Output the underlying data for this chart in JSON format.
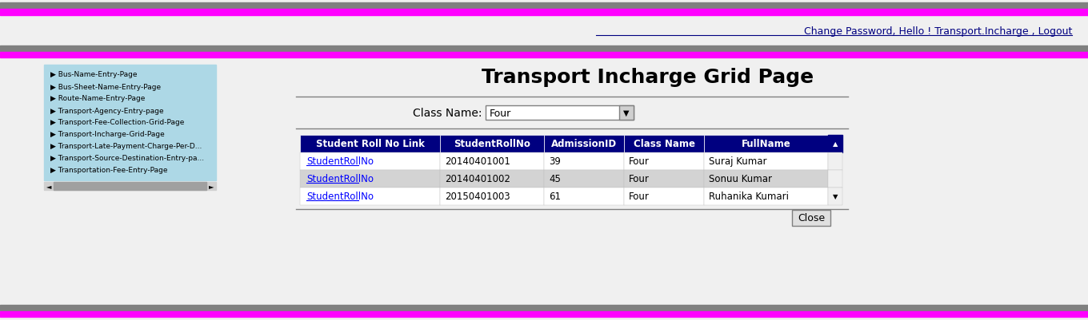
{
  "title": "Transport Incharge Grid Page",
  "bg_color": "#f0f0f0",
  "top_bar_gray": "#808080",
  "top_bar_magenta": "#ff00ff",
  "header_link_text": "Change Password, Hello ! Transport.Incharge , Logout",
  "nav_items": [
    "Bus-Name-Entry-Page",
    "Bus-Sheet-Name-Entry-Page",
    "Route-Name-Entry-Page",
    "Transport-Agency-Entry-page",
    "Transport-Fee-Collection-Grid-Page",
    "Transport-Incharge-Grid-Page",
    "Transport-Late-Payment-Charge-Per-D...",
    "Transport-Source-Destination-Entry-pa...",
    "Transportation-Fee-Entry-Page"
  ],
  "nav_bg": "#add8e6",
  "class_label": "Class Name:",
  "class_value": "Four",
  "table_header_bg": "#000080",
  "table_header_color": "#ffffff",
  "table_columns": [
    "Student Roll No Link",
    "StudentRollNo",
    "AdmissionID",
    "Class Name",
    "FullName"
  ],
  "table_rows": [
    [
      "StudentRollNo",
      "20140401001",
      "39",
      "Four",
      "Suraj Kumar"
    ],
    [
      "StudentRollNo",
      "20140401002",
      "45",
      "Four",
      "Sonuu Kumar"
    ],
    [
      "StudentRollNo",
      "20150401003",
      "61",
      "Four",
      "Ruhanika Kumari"
    ]
  ],
  "row_colors": [
    "#ffffff",
    "#d3d3d3",
    "#ffffff"
  ],
  "link_color": "#0000ff",
  "close_btn_text": "Close",
  "scrollbar_color": "#c0c0c0",
  "separator_color": "#808080"
}
